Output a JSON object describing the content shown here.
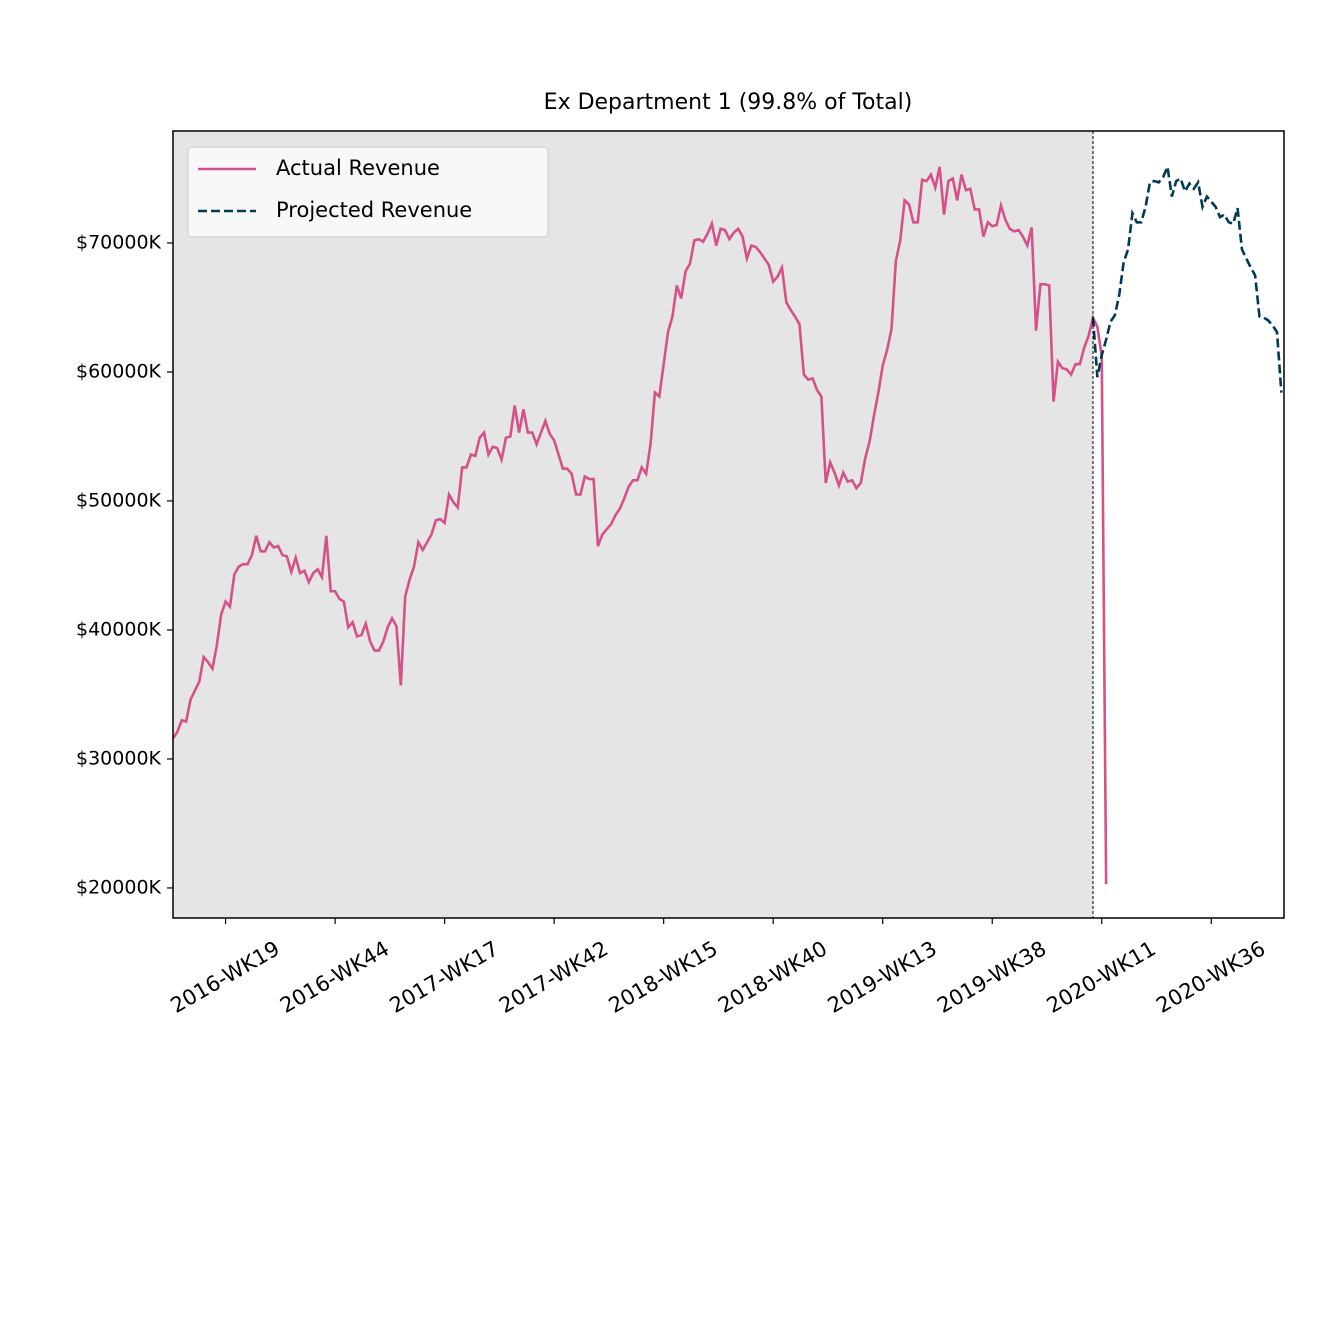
{
  "chart_data": {
    "type": "line",
    "title": "Ex Department 1 (99.8% of Total)",
    "categories": [
      null,
      null,
      null,
      null,
      null,
      null,
      null,
      null,
      null,
      null,
      null,
      null,
      "2016-WK19",
      null,
      null,
      null,
      null,
      null,
      null,
      null,
      null,
      null,
      null,
      null,
      null,
      null,
      null,
      null,
      null,
      null,
      null,
      null,
      null,
      null,
      null,
      null,
      null,
      "2016-WK44",
      null,
      null,
      null,
      null,
      null,
      null,
      null,
      null,
      null,
      null,
      null,
      null,
      null,
      null,
      null,
      null,
      null,
      null,
      null,
      null,
      null,
      null,
      null,
      null,
      "2017-WK17",
      null,
      null,
      null,
      null,
      null,
      null,
      null,
      null,
      null,
      null,
      null,
      null,
      null,
      null,
      null,
      null,
      null,
      null,
      null,
      null,
      null,
      null,
      null,
      null,
      "2017-WK42",
      null,
      null,
      null,
      null,
      null,
      null,
      null,
      null,
      null,
      null,
      null,
      null,
      null,
      null,
      null,
      null,
      null,
      null,
      null,
      null,
      null,
      null,
      null,
      null,
      "2018-WK15",
      null,
      null,
      null,
      null,
      null,
      null,
      null,
      null,
      null,
      null,
      null,
      null,
      null,
      null,
      null,
      null,
      null,
      null,
      null,
      null,
      null,
      null,
      null,
      null,
      "2018-WK40",
      null,
      null,
      null,
      null,
      null,
      null,
      null,
      null,
      null,
      null,
      null,
      null,
      null,
      null,
      null,
      null,
      null,
      null,
      null,
      null,
      null,
      null,
      null,
      null,
      "2019-WK13",
      null,
      null,
      null,
      null,
      null,
      null,
      null,
      null,
      null,
      null,
      null,
      null,
      null,
      null,
      null,
      null,
      null,
      null,
      null,
      null,
      null,
      null,
      null,
      null,
      "2019-WK38",
      null,
      null,
      null,
      null,
      null,
      null,
      null,
      null,
      null,
      null,
      null,
      null,
      null,
      null,
      null,
      null,
      null,
      null,
      null,
      null,
      null,
      null,
      null,
      null,
      "2020-WK11",
      null,
      null,
      null,
      null,
      null,
      null,
      null,
      null,
      null,
      null,
      null,
      null,
      null,
      null,
      null,
      null,
      null,
      null,
      null,
      null,
      null,
      null,
      null,
      null,
      "2020-WK36",
      null,
      null,
      null,
      null,
      null,
      null,
      null,
      null,
      null,
      null,
      null,
      null,
      null,
      null,
      null,
      null
    ],
    "series": [
      {
        "name": "Actual Revenue",
        "color": "#d6508a",
        "dashed": false,
        "values": [
          31600,
          32100,
          33000,
          32900,
          34600,
          35300,
          36000,
          37900,
          37500,
          37000,
          38800,
          41200,
          42200,
          41800,
          44300,
          44900,
          45100,
          45100,
          45800,
          47300,
          46100,
          46100,
          46800,
          46400,
          46500,
          45800,
          45700,
          44500,
          45600,
          44400,
          44600,
          43700,
          44400,
          44700,
          44100,
          47300,
          43000,
          43000,
          42400,
          42200,
          40200,
          40600,
          39500,
          39600,
          40500,
          39100,
          38400,
          38400,
          39100,
          40200,
          40900,
          40300,
          35700,
          42600,
          43900,
          44900,
          46800,
          46200,
          46800,
          47400,
          48500,
          48600,
          48300,
          50500,
          49900,
          49500,
          52600,
          52600,
          53600,
          53500,
          54900,
          55300,
          53600,
          54200,
          54100,
          53200,
          54900,
          55000,
          57400,
          55300,
          57100,
          55300,
          55300,
          54400,
          55300,
          56200,
          55200,
          54700,
          53600,
          52500,
          52500,
          52100,
          50500,
          50500,
          51900,
          51700,
          51700,
          46500,
          47400,
          47800,
          48200,
          48900,
          49400,
          50200,
          51100,
          51600,
          51600,
          52600,
          52100,
          54400,
          58400,
          58100,
          60600,
          63100,
          64300,
          66700,
          65700,
          67800,
          68400,
          70200,
          70300,
          70100,
          70700,
          71500,
          69800,
          71100,
          71000,
          70300,
          70800,
          71100,
          70500,
          68800,
          69800,
          69700,
          69300,
          68800,
          68300,
          67000,
          67400,
          68100,
          65400,
          64800,
          64300,
          63700,
          59800,
          59400,
          59500,
          58600,
          58100,
          51400,
          53000,
          52200,
          51200,
          52200,
          51500,
          51600,
          51000,
          51400,
          53300,
          54600,
          56600,
          58400,
          60500,
          61700,
          63300,
          68600,
          70200,
          73300,
          73000,
          71600,
          71600,
          74900,
          74800,
          75300,
          74300,
          75900,
          72200,
          74800,
          75000,
          73300,
          75300,
          74100,
          74200,
          72600,
          72600,
          70500,
          71600,
          71300,
          71400,
          72900,
          71800,
          71100,
          70900,
          71000,
          70500,
          69800,
          71200,
          63200,
          66800,
          66800,
          66700,
          57700,
          60800,
          60300,
          60200,
          59800,
          60600,
          60600,
          61900,
          62800,
          64200,
          63500,
          61200,
          20300,
          null,
          null,
          null,
          null,
          null,
          null,
          null,
          null,
          null,
          null,
          null,
          null,
          null,
          null,
          null,
          null,
          null,
          null,
          null,
          null,
          null,
          null,
          null,
          null,
          null,
          null,
          null,
          null,
          null,
          null,
          null,
          null,
          null,
          null,
          null,
          null,
          null,
          null,
          null,
          null
        ]
      },
      {
        "name": "Projected Revenue",
        "color": "#003a57",
        "dashed": true,
        "values": [
          null,
          null,
          null,
          null,
          null,
          null,
          null,
          null,
          null,
          null,
          null,
          null,
          null,
          null,
          null,
          null,
          null,
          null,
          null,
          null,
          null,
          null,
          null,
          null,
          null,
          null,
          null,
          null,
          null,
          null,
          null,
          null,
          null,
          null,
          null,
          null,
          null,
          null,
          null,
          null,
          null,
          null,
          null,
          null,
          null,
          null,
          null,
          null,
          null,
          null,
          null,
          null,
          null,
          null,
          null,
          null,
          null,
          null,
          null,
          null,
          null,
          null,
          null,
          null,
          null,
          null,
          null,
          null,
          null,
          null,
          null,
          null,
          null,
          null,
          null,
          null,
          null,
          null,
          null,
          null,
          null,
          null,
          null,
          null,
          null,
          null,
          null,
          null,
          null,
          null,
          null,
          null,
          null,
          null,
          null,
          null,
          null,
          null,
          null,
          null,
          null,
          null,
          null,
          null,
          null,
          null,
          null,
          null,
          null,
          null,
          null,
          null,
          null,
          null,
          null,
          null,
          null,
          null,
          null,
          null,
          null,
          null,
          null,
          null,
          null,
          null,
          null,
          null,
          null,
          null,
          null,
          null,
          null,
          null,
          null,
          null,
          null,
          null,
          null,
          null,
          null,
          null,
          null,
          null,
          null,
          null,
          null,
          null,
          null,
          null,
          null,
          null,
          null,
          null,
          null,
          null,
          null,
          null,
          null,
          null,
          null,
          null,
          null,
          null,
          null,
          null,
          null,
          null,
          null,
          null,
          null,
          null,
          null,
          null,
          null,
          null,
          null,
          null,
          null,
          null,
          null,
          null,
          null,
          null,
          null,
          null,
          null,
          null,
          null,
          null,
          null,
          null,
          null,
          null,
          null,
          null,
          null,
          null,
          null,
          null,
          null,
          null,
          null,
          null,
          null,
          null,
          null,
          null,
          null,
          null,
          64200,
          59600,
          61300,
          62500,
          63900,
          64400,
          66000,
          68500,
          69500,
          72300,
          71600,
          71600,
          72800,
          74700,
          74800,
          74700,
          75100,
          75900,
          73600,
          74800,
          75000,
          74000,
          74600,
          74200,
          74700,
          72800,
          73600,
          73200,
          72800,
          72000,
          72200,
          71600,
          71500,
          72700,
          69500,
          68800,
          68100,
          67500,
          64300,
          64200,
          64000,
          63600,
          63100,
          58400
        ]
      }
    ],
    "ylim": [
      17670,
      78680
    ],
    "yticks": [
      {
        "value": 20000,
        "label": "$20000K"
      },
      {
        "value": 30000,
        "label": "$30000K"
      },
      {
        "value": 40000,
        "label": "$40000K"
      },
      {
        "value": 50000,
        "label": "$50000K"
      },
      {
        "value": 60000,
        "label": "$60000K"
      },
      {
        "value": 70000,
        "label": "$70000K"
      }
    ],
    "grid": false,
    "legend": "upper-left",
    "history_background": "#e5e5e5"
  }
}
